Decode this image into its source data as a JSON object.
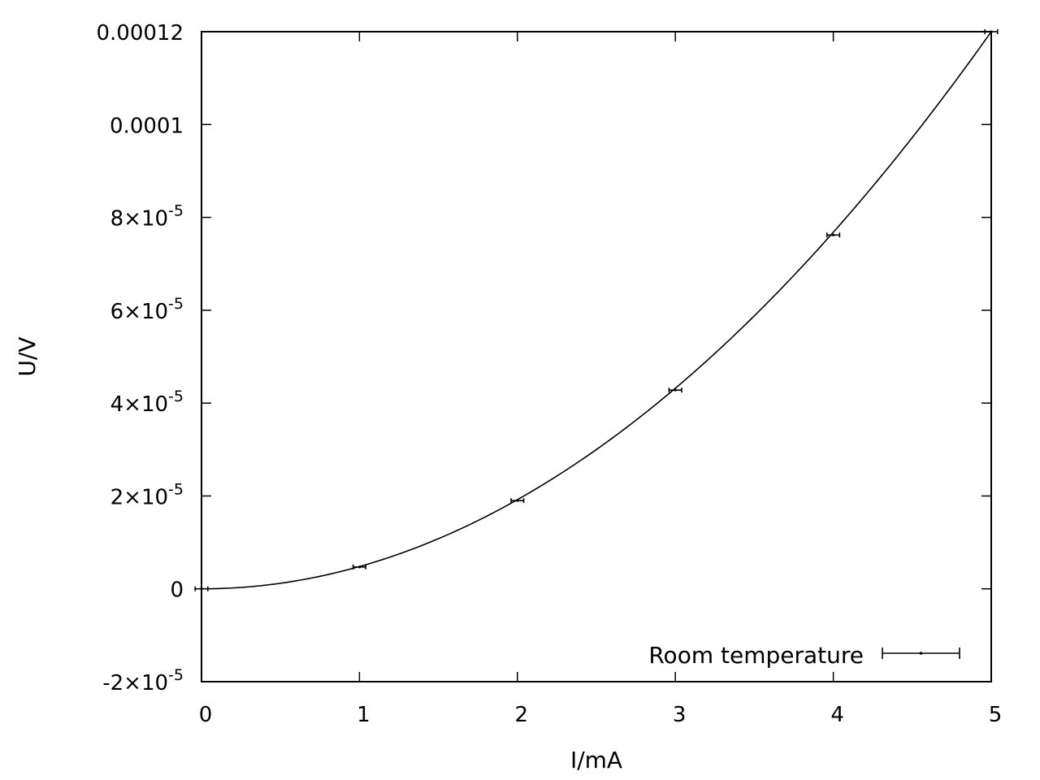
{
  "chart_data": {
    "type": "scatter",
    "xlabel": "I/mA",
    "ylabel": "U/V",
    "xlim": [
      0,
      5
    ],
    "ylim": [
      -2e-05,
      0.00012
    ],
    "x_ticks": [
      {
        "value": 0,
        "label": "0"
      },
      {
        "value": 1,
        "label": "1"
      },
      {
        "value": 2,
        "label": "2"
      },
      {
        "value": 3,
        "label": "3"
      },
      {
        "value": 4,
        "label": "4"
      },
      {
        "value": 5,
        "label": "5"
      }
    ],
    "y_ticks": [
      {
        "value": -2e-05,
        "mant": "-2×10",
        "exp": "-5"
      },
      {
        "value": 0,
        "mant": "0",
        "exp": ""
      },
      {
        "value": 2e-05,
        "mant": "2×10",
        "exp": "-5"
      },
      {
        "value": 4e-05,
        "mant": "4×10",
        "exp": "-5"
      },
      {
        "value": 6e-05,
        "mant": "6×10",
        "exp": "-5"
      },
      {
        "value": 8e-05,
        "mant": "8×10",
        "exp": "-5"
      },
      {
        "value": 0.0001,
        "mant": "0.0001",
        "exp": ""
      },
      {
        "value": 0.00012,
        "mant": "0.00012",
        "exp": ""
      }
    ],
    "grid": false,
    "legend_position": "bottom-right",
    "series": [
      {
        "name": "Room temperature",
        "style": "points-with-x-errorbars",
        "x": [
          0,
          1,
          2,
          3,
          4,
          5
        ],
        "y": [
          0.0,
          4.7e-06,
          1.9e-05,
          4.28e-05,
          7.62e-05,
          0.00012
        ],
        "x_error": [
          0.04,
          0.04,
          0.04,
          0.04,
          0.04,
          0.04
        ]
      }
    ],
    "fit_curve": {
      "description": "",
      "coefficient": 4.8e-06
    }
  }
}
